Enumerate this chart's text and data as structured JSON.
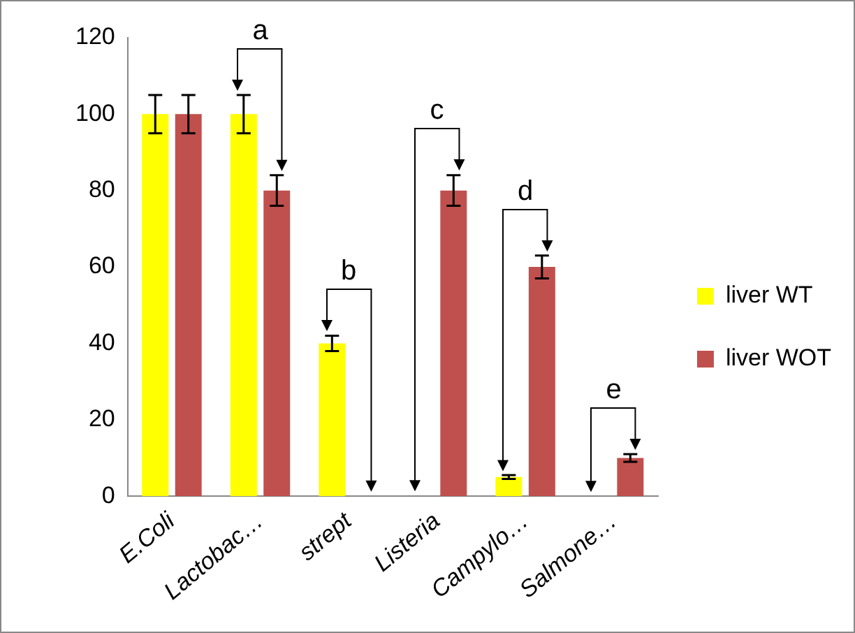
{
  "chart_data": {
    "type": "bar",
    "categories": [
      "E.Coli",
      "Lactobac…",
      "strept",
      "Listeria",
      "Campylo…",
      "Salmone…"
    ],
    "series": [
      {
        "name": "liver WT",
        "color": "#ffff00",
        "values": [
          100,
          100,
          40,
          0,
          5,
          0
        ],
        "errors": [
          5,
          5,
          2,
          null,
          0.5,
          null
        ]
      },
      {
        "name": "liver WOT",
        "color": "#c0504d",
        "values": [
          100,
          80,
          0,
          80,
          60,
          10
        ],
        "errors": [
          5,
          4,
          null,
          4,
          3,
          1
        ]
      }
    ],
    "ylim": [
      0,
      120
    ],
    "yticks": [
      0,
      20,
      40,
      60,
      80,
      100,
      120
    ],
    "grid": false,
    "legend": "right",
    "annotations": [
      "a",
      "b",
      "c",
      "d",
      "e"
    ]
  }
}
